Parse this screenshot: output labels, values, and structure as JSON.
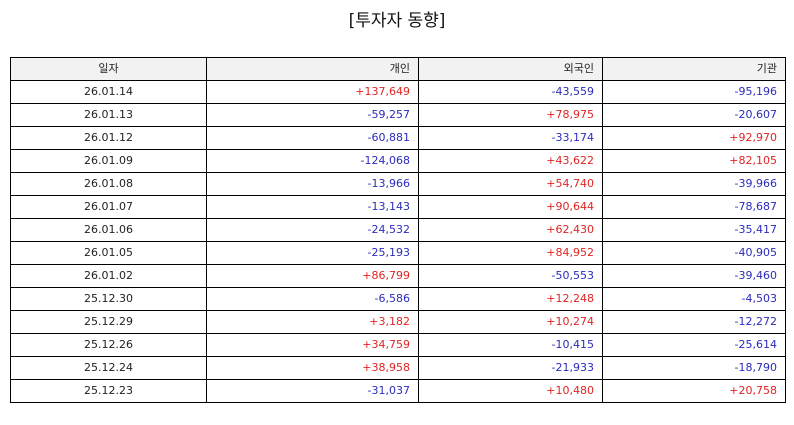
{
  "title": "[투자자 동향]",
  "columns": [
    "일자",
    "개인",
    "외국인",
    "기관"
  ],
  "colors": {
    "positive": "#e02424",
    "negative": "#2b2bbf"
  },
  "rows": [
    {
      "date": "26.01.14",
      "individual": "+137,649",
      "foreign": "-43,559",
      "institution": "-95,196"
    },
    {
      "date": "26.01.13",
      "individual": "-59,257",
      "foreign": "+78,975",
      "institution": "-20,607"
    },
    {
      "date": "26.01.12",
      "individual": "-60,881",
      "foreign": "-33,174",
      "institution": "+92,970"
    },
    {
      "date": "26.01.09",
      "individual": "-124,068",
      "foreign": "+43,622",
      "institution": "+82,105"
    },
    {
      "date": "26.01.08",
      "individual": "-13,966",
      "foreign": "+54,740",
      "institution": "-39,966"
    },
    {
      "date": "26.01.07",
      "individual": "-13,143",
      "foreign": "+90,644",
      "institution": "-78,687"
    },
    {
      "date": "26.01.06",
      "individual": "-24,532",
      "foreign": "+62,430",
      "institution": "-35,417"
    },
    {
      "date": "26.01.05",
      "individual": "-25,193",
      "foreign": "+84,952",
      "institution": "-40,905"
    },
    {
      "date": "26.01.02",
      "individual": "+86,799",
      "foreign": "-50,553",
      "institution": "-39,460"
    },
    {
      "date": "25.12.30",
      "individual": "-6,586",
      "foreign": "+12,248",
      "institution": "-4,503"
    },
    {
      "date": "25.12.29",
      "individual": "+3,182",
      "foreign": "+10,274",
      "institution": "-12,272"
    },
    {
      "date": "25.12.26",
      "individual": "+34,759",
      "foreign": "-10,415",
      "institution": "-25,614"
    },
    {
      "date": "25.12.24",
      "individual": "+38,958",
      "foreign": "-21,933",
      "institution": "-18,790"
    },
    {
      "date": "25.12.23",
      "individual": "-31,037",
      "foreign": "+10,480",
      "institution": "+20,758"
    }
  ]
}
